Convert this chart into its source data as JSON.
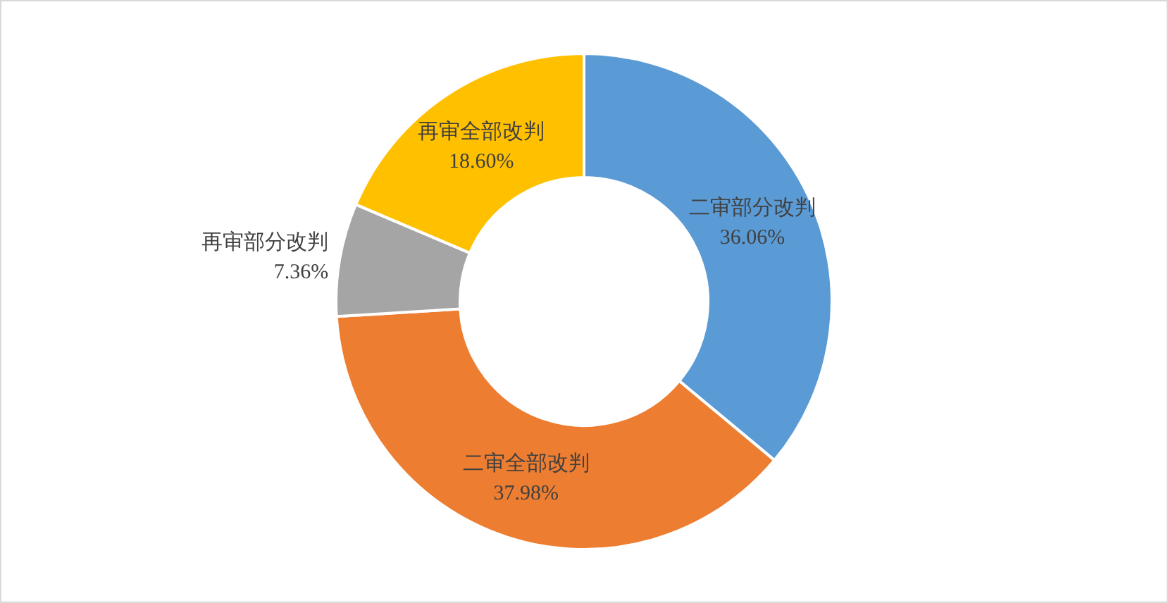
{
  "chart_data": {
    "type": "donut",
    "categories": [
      "二审部分改判",
      "二审全部改判",
      "再审部分改判",
      "再审全部改判"
    ],
    "values": [
      36.06,
      37.98,
      7.36,
      18.6
    ],
    "value_labels": [
      "36.06%",
      "37.98%",
      "7.36%",
      "18.60%"
    ],
    "colors": [
      "#5b9bd5",
      "#ed7d31",
      "#a5a5a5",
      "#ffc000"
    ],
    "legend": false
  }
}
